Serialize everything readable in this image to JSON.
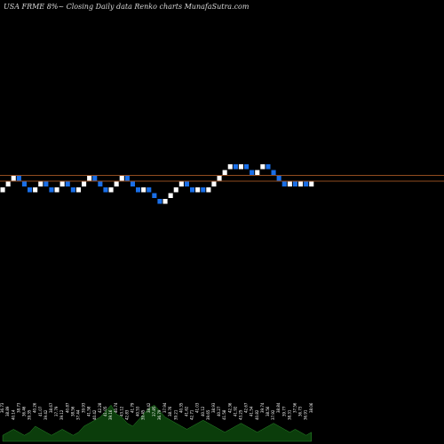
{
  "chart_title": "USA FRME 8%~  Closing Daily data  Renko  charts MunafaSutra.com",
  "colors": {
    "background": "#000000",
    "up_brick": "#ffffff",
    "down_brick": "#1a6fe8",
    "support_line": "#c0642a",
    "volume": "#0b3d0b",
    "volume_edge": "#2a8a2a",
    "tick_text": "#ffffff"
  },
  "chart_data": {
    "type": "renko",
    "title": "USA FRME 8%~  Closing Daily data  Renko  charts MunafaSutra.com",
    "brick_size": 2.6,
    "grid": false,
    "reference_lines": [
      38.9,
      36.3
    ],
    "bricks": [
      {
        "dir": "up",
        "close": 33.7
      },
      {
        "dir": "up",
        "close": 36.3
      },
      {
        "dir": "up",
        "close": 38.9
      },
      {
        "dir": "down",
        "close": 36.3
      },
      {
        "dir": "down",
        "close": 33.7
      },
      {
        "dir": "down",
        "close": 31.1
      },
      {
        "dir": "up",
        "close": 33.7
      },
      {
        "dir": "up",
        "close": 36.3
      },
      {
        "dir": "down",
        "close": 33.7
      },
      {
        "dir": "down",
        "close": 31.1
      },
      {
        "dir": "up",
        "close": 33.7
      },
      {
        "dir": "up",
        "close": 36.3
      },
      {
        "dir": "down",
        "close": 33.7
      },
      {
        "dir": "down",
        "close": 31.1
      },
      {
        "dir": "up",
        "close": 33.7
      },
      {
        "dir": "up",
        "close": 36.3
      },
      {
        "dir": "up",
        "close": 38.9
      },
      {
        "dir": "down",
        "close": 36.3
      },
      {
        "dir": "down",
        "close": 33.7
      },
      {
        "dir": "down",
        "close": 31.1
      },
      {
        "dir": "up",
        "close": 33.7
      },
      {
        "dir": "up",
        "close": 36.3
      },
      {
        "dir": "up",
        "close": 38.9
      },
      {
        "dir": "down",
        "close": 36.3
      },
      {
        "dir": "down",
        "close": 33.7
      },
      {
        "dir": "down",
        "close": 31.1
      },
      {
        "dir": "up",
        "close": 33.7
      },
      {
        "dir": "down",
        "close": 31.1
      },
      {
        "dir": "down",
        "close": 28.5
      },
      {
        "dir": "down",
        "close": 25.9
      },
      {
        "dir": "up",
        "close": 28.5
      },
      {
        "dir": "up",
        "close": 31.1
      },
      {
        "dir": "up",
        "close": 33.7
      },
      {
        "dir": "up",
        "close": 36.3
      },
      {
        "dir": "down",
        "close": 33.7
      },
      {
        "dir": "down",
        "close": 31.1
      },
      {
        "dir": "up",
        "close": 33.7
      },
      {
        "dir": "down",
        "close": 31.1
      },
      {
        "dir": "up",
        "close": 33.7
      },
      {
        "dir": "up",
        "close": 36.3
      },
      {
        "dir": "up",
        "close": 38.9
      },
      {
        "dir": "up",
        "close": 41.5
      },
      {
        "dir": "up",
        "close": 44.1
      },
      {
        "dir": "down",
        "close": 41.5
      },
      {
        "dir": "up",
        "close": 44.1
      },
      {
        "dir": "down",
        "close": 41.5
      },
      {
        "dir": "down",
        "close": 38.9
      },
      {
        "dir": "up",
        "close": 41.5
      },
      {
        "dir": "up",
        "close": 44.1
      },
      {
        "dir": "down",
        "close": 41.5
      },
      {
        "dir": "down",
        "close": 38.9
      },
      {
        "dir": "down",
        "close": 36.3
      },
      {
        "dir": "down",
        "close": 33.7
      },
      {
        "dir": "up",
        "close": 36.3
      },
      {
        "dir": "down",
        "close": 33.7
      },
      {
        "dir": "up",
        "close": 36.3
      },
      {
        "dir": "down",
        "close": 33.7
      },
      {
        "dir": "up",
        "close": 36.3
      }
    ],
    "volume": [
      2,
      3,
      4,
      3,
      2,
      3,
      5,
      4,
      3,
      2,
      3,
      4,
      3,
      2,
      3,
      5,
      6,
      7,
      8,
      10,
      12,
      9,
      8,
      6,
      5,
      7,
      9,
      11,
      12,
      10,
      8,
      7,
      6,
      5,
      4,
      5,
      6,
      7,
      6,
      5,
      4,
      3,
      4,
      5,
      6,
      5,
      4,
      3,
      4,
      5,
      6,
      5,
      4,
      3,
      4,
      3,
      2,
      3
    ],
    "tick_labels": [
      "36.73",
      "38.89",
      "40.14",
      "38.73",
      "36.46",
      "39.35",
      "40.26",
      "41.07",
      "39.42",
      "38.67",
      "37.79",
      "39.12",
      "40.87",
      "38.56",
      "37.44",
      "39.93",
      "41.58",
      "40.42",
      "42.28",
      "41.05",
      "39.16",
      "40.74",
      "43.12",
      "42.83",
      "41.79",
      "40.53",
      "39.45",
      "38.42",
      "37.85",
      "36.79",
      "37.94",
      "38.76",
      "39.21",
      "40.35",
      "41.62",
      "42.71",
      "41.03",
      "40.12",
      "39.65",
      "38.93",
      "40.27",
      "41.58",
      "42.36",
      "41.92",
      "43.25",
      "42.67",
      "41.54",
      "40.82",
      "39.74",
      "38.56",
      "37.92",
      "38.84",
      "39.77",
      "38.31",
      "37.56",
      "36.73",
      "36.91",
      "38.06"
    ]
  }
}
